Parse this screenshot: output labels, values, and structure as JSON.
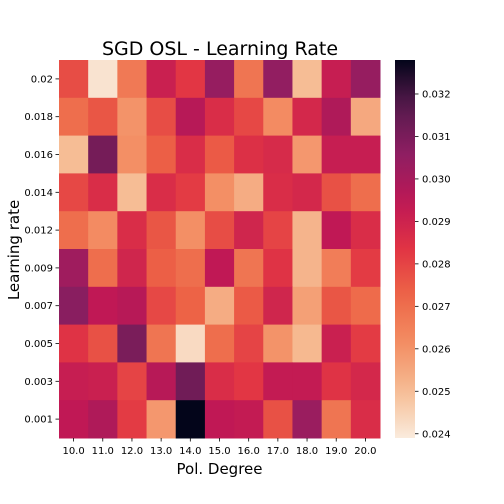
{
  "chart_data": {
    "type": "heatmap",
    "title": "SGD OSL - Learning Rate",
    "xlabel": "Pol. Degree",
    "ylabel": "Learning rate",
    "x_categories": [
      "10.0",
      "11.0",
      "12.0",
      "13.0",
      "14.0",
      "15.0",
      "16.0",
      "17.0",
      "18.0",
      "19.0",
      "20.0"
    ],
    "y_categories": [
      "0.02",
      "0.018",
      "0.016",
      "0.014",
      "0.012",
      "0.009",
      "0.007",
      "0.005",
      "0.003",
      "0.001"
    ],
    "values": [
      [
        0.0278,
        0.0241,
        0.0267,
        0.0291,
        0.0283,
        0.0304,
        0.0268,
        0.0305,
        0.025,
        0.0292,
        0.0304
      ],
      [
        0.027,
        0.0276,
        0.026,
        0.0278,
        0.0296,
        0.0286,
        0.0279,
        0.0262,
        0.0288,
        0.0298,
        0.0255
      ],
      [
        0.025,
        0.0311,
        0.0261,
        0.0274,
        0.0286,
        0.0275,
        0.0285,
        0.0287,
        0.0259,
        0.0292,
        0.0292
      ],
      [
        0.0279,
        0.0286,
        0.025,
        0.0286,
        0.0282,
        0.0261,
        0.0254,
        0.0286,
        0.0288,
        0.0277,
        0.027
      ],
      [
        0.027,
        0.0262,
        0.0286,
        0.0276,
        0.0261,
        0.0278,
        0.0289,
        0.028,
        0.0252,
        0.0294,
        0.0286
      ],
      [
        0.0302,
        0.027,
        0.0289,
        0.0274,
        0.027,
        0.0294,
        0.0268,
        0.0284,
        0.0252,
        0.0266,
        0.0282
      ],
      [
        0.0307,
        0.0294,
        0.0296,
        0.0279,
        0.0273,
        0.0254,
        0.0275,
        0.0289,
        0.0257,
        0.0276,
        0.0271
      ],
      [
        0.0284,
        0.0277,
        0.031,
        0.0268,
        0.0243,
        0.027,
        0.028,
        0.026,
        0.0251,
        0.0291,
        0.0282
      ],
      [
        0.0292,
        0.0291,
        0.028,
        0.0296,
        0.0312,
        0.0286,
        0.0283,
        0.0293,
        0.0293,
        0.0284,
        0.0288
      ],
      [
        0.0294,
        0.0298,
        0.0282,
        0.0259,
        0.0328,
        0.0294,
        0.0293,
        0.0277,
        0.0303,
        0.0268,
        0.0286
      ]
    ],
    "colorbar": {
      "min": 0.0239,
      "max": 0.0328,
      "ticks": [
        "0.024",
        "0.025",
        "0.026",
        "0.027",
        "0.028",
        "0.029",
        "0.030",
        "0.031",
        "0.032"
      ],
      "colormap": "rocket_r"
    }
  }
}
